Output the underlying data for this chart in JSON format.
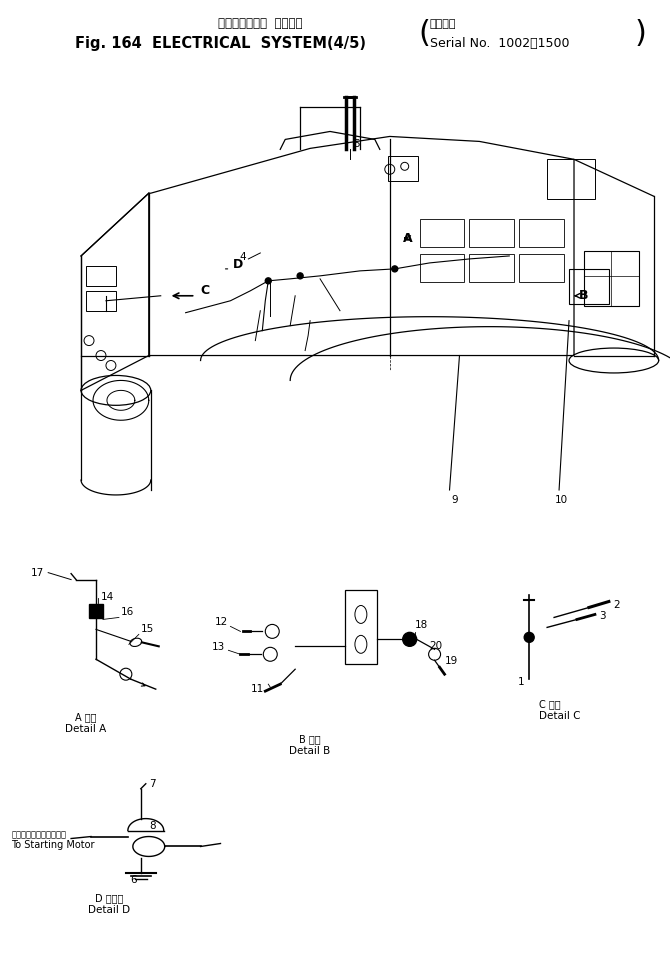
{
  "figsize": [
    6.71,
    9.65
  ],
  "dpi": 100,
  "bg_color": "#ffffff",
  "title_jp": "エレクトリカル  システム",
  "title_en": "Fig. 164  ELECTRICAL  SYSTEM(4/5)",
  "serial_jp": "適用号機",
  "serial_en": "Serial No.  1002～1500"
}
